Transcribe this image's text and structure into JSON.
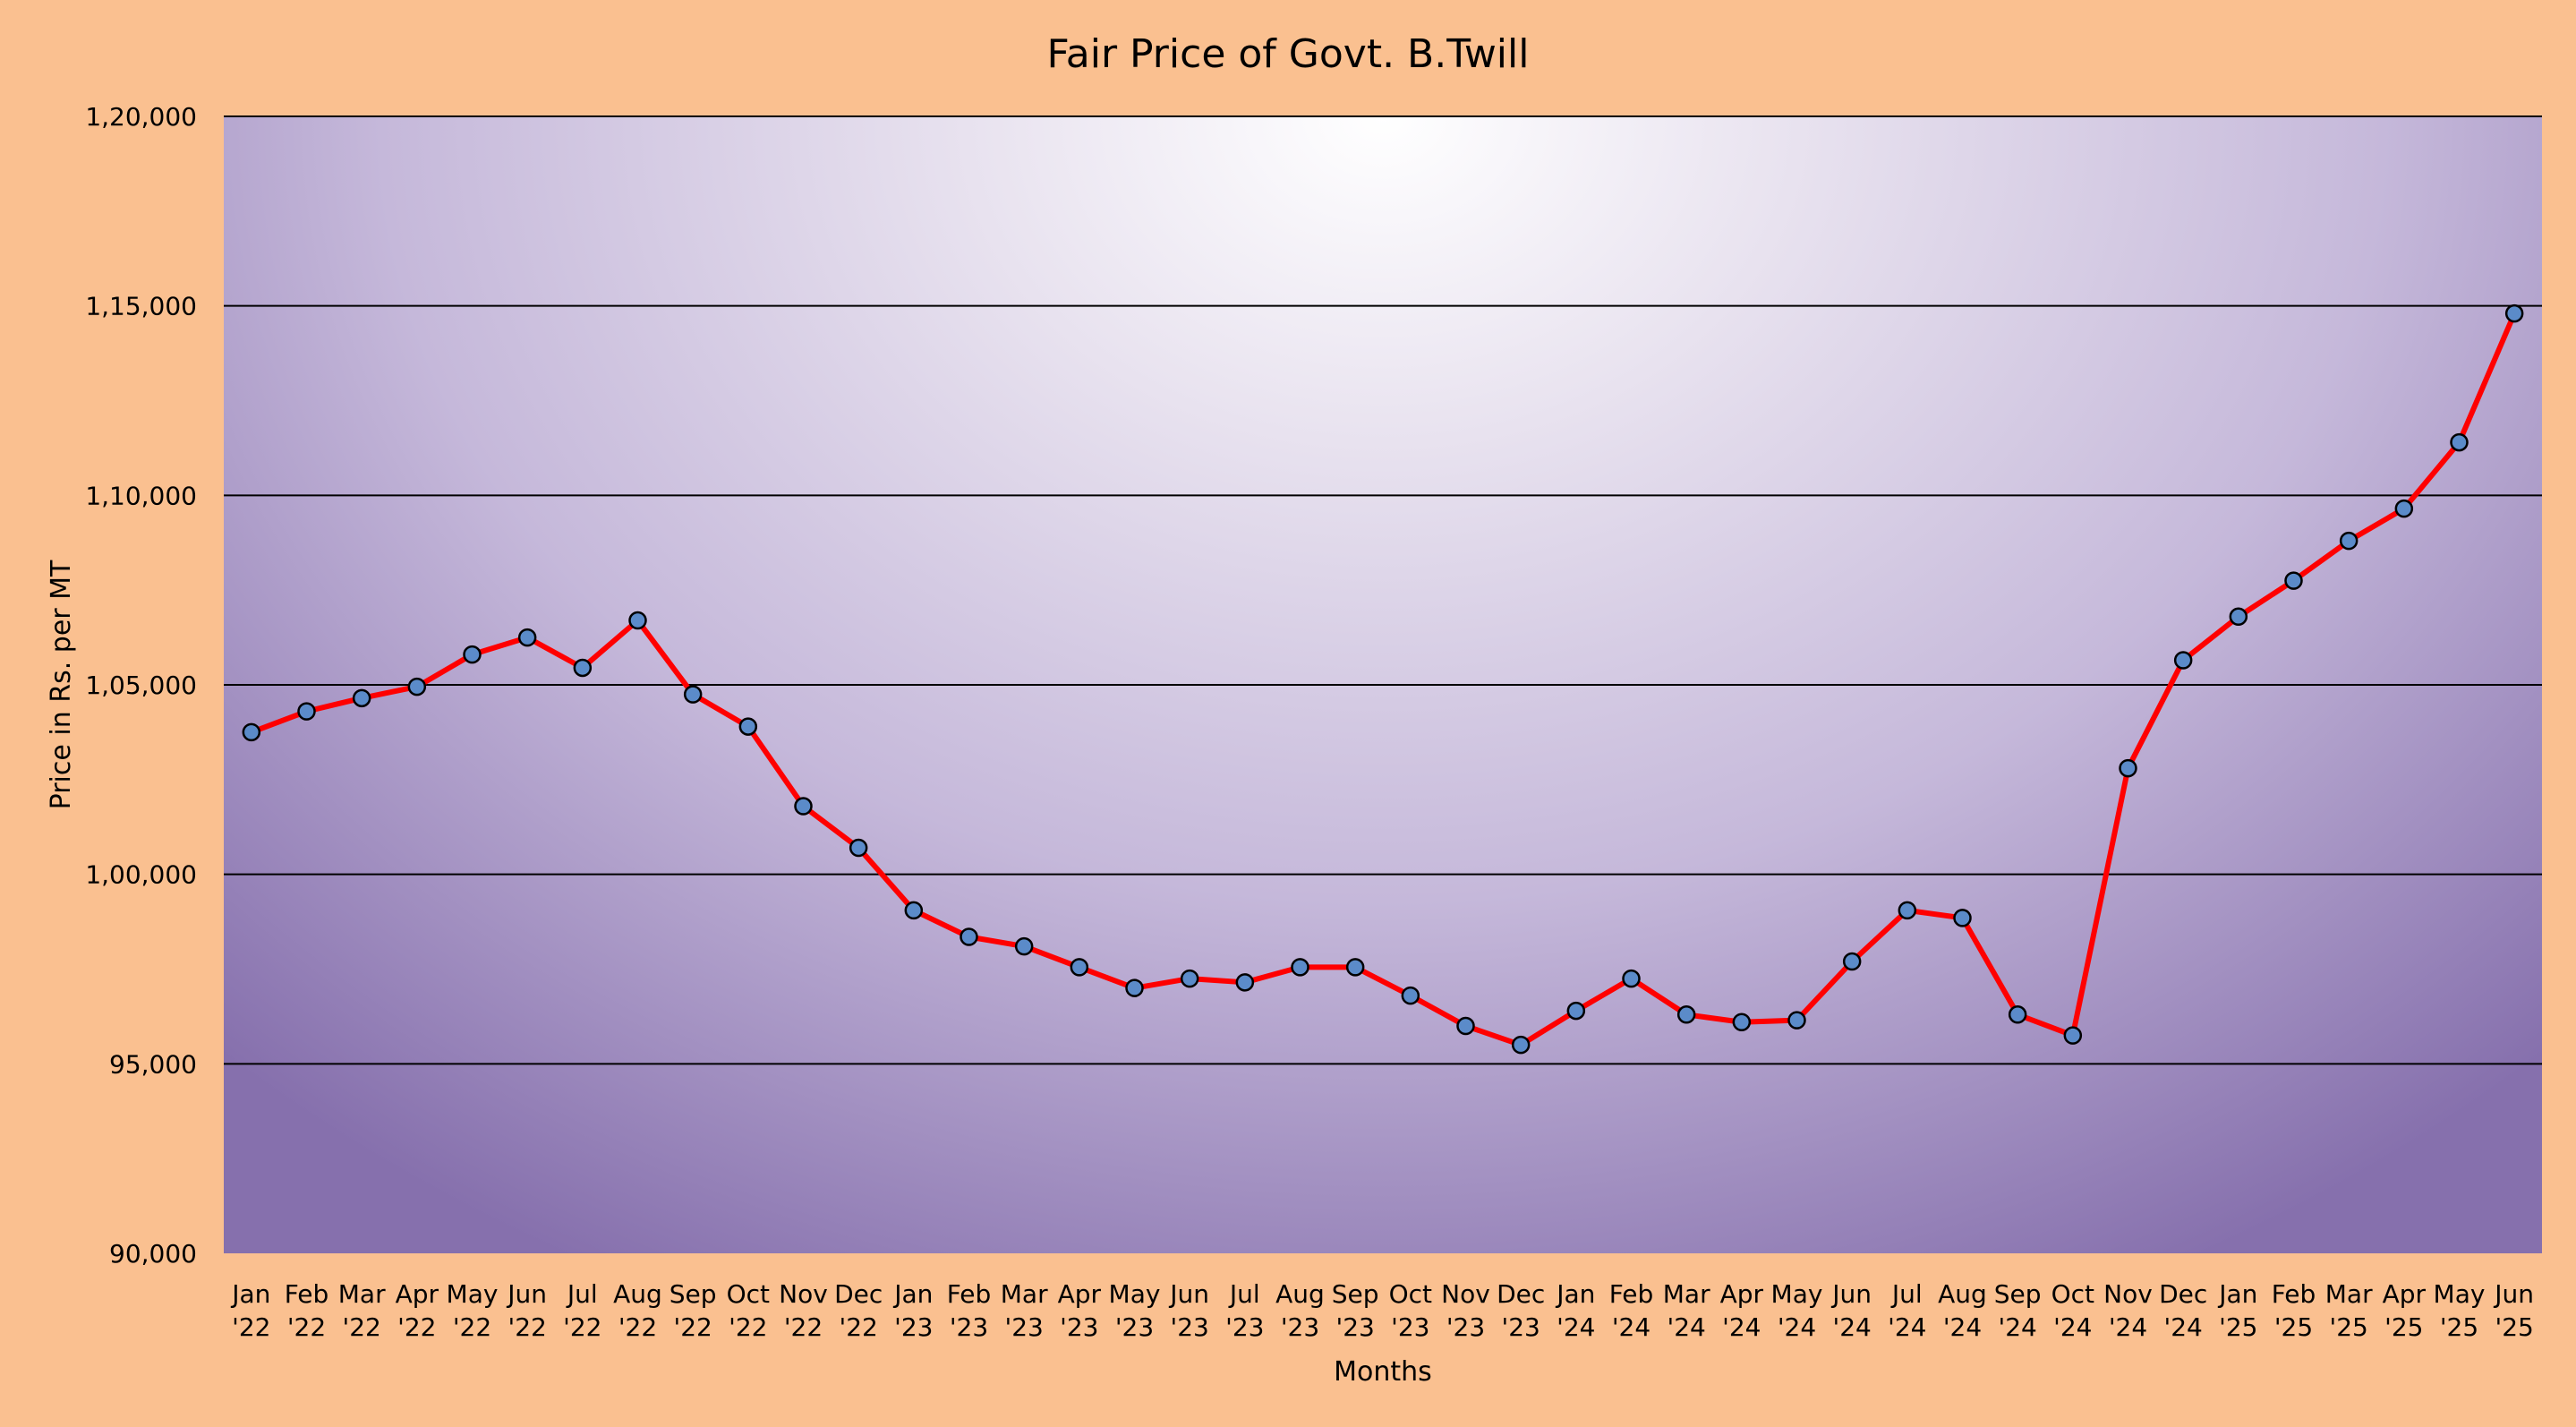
{
  "chart_data": {
    "type": "line",
    "title": "Fair Price of Govt. B.Twill",
    "xlabel": "Months",
    "ylabel": "Price in Rs. per MT",
    "ylim": [
      90000,
      120000
    ],
    "ytick_values": [
      90000,
      95000,
      100000,
      105000,
      110000,
      115000,
      120000
    ],
    "ytick_labels": [
      "90,000",
      "95,000",
      "1,00,000",
      "1,05,000",
      "1,10,000",
      "1,15,000",
      "1,20,000"
    ],
    "grid": "horizontal",
    "legend": "none",
    "categories": [
      [
        "Jan",
        "'22"
      ],
      [
        "Feb",
        "'22"
      ],
      [
        "Mar",
        "'22"
      ],
      [
        "Apr",
        "'22"
      ],
      [
        "May",
        "'22"
      ],
      [
        "Jun",
        "'22"
      ],
      [
        "Jul",
        "'22"
      ],
      [
        "Aug",
        "'22"
      ],
      [
        "Sep",
        "'22"
      ],
      [
        "Oct",
        "'22"
      ],
      [
        "Nov",
        "'22"
      ],
      [
        "Dec",
        "'22"
      ],
      [
        "Jan",
        "'23"
      ],
      [
        "Feb",
        "'23"
      ],
      [
        "Mar",
        "'23"
      ],
      [
        "Apr",
        "'23"
      ],
      [
        "May",
        "'23"
      ],
      [
        "Jun",
        "'23"
      ],
      [
        "Jul",
        "'23"
      ],
      [
        "Aug",
        "'23"
      ],
      [
        "Sep",
        "'23"
      ],
      [
        "Oct",
        "'23"
      ],
      [
        "Nov",
        "'23"
      ],
      [
        "Dec",
        "'23"
      ],
      [
        "Jan",
        "'24"
      ],
      [
        "Feb",
        "'24"
      ],
      [
        "Mar",
        "'24"
      ],
      [
        "Apr",
        "'24"
      ],
      [
        "May",
        "'24"
      ],
      [
        "Jun",
        "'24"
      ],
      [
        "Jul",
        "'24"
      ],
      [
        "Aug",
        "'24"
      ],
      [
        "Sep",
        "'24"
      ],
      [
        "Oct",
        "'24"
      ],
      [
        "Nov",
        "'24"
      ],
      [
        "Dec",
        "'24"
      ],
      [
        "Jan",
        "'25"
      ],
      [
        "Feb",
        "'25"
      ],
      [
        "Mar",
        "'25"
      ],
      [
        "Apr",
        "'25"
      ],
      [
        "May",
        "'25"
      ],
      [
        "Jun",
        "'25"
      ]
    ],
    "series": [
      {
        "values": [
          103750,
          104300,
          104650,
          104950,
          105800,
          106250,
          105450,
          106700,
          104750,
          103900,
          101800,
          100700,
          99050,
          98350,
          98100,
          97550,
          97000,
          97250,
          97150,
          97550,
          97550,
          96800,
          96000,
          95500,
          96400,
          97250,
          96300,
          96100,
          96150,
          97700,
          99050,
          98850,
          96300,
          95750,
          102800,
          105650,
          106800,
          107750,
          108800,
          109650,
          111400,
          114800
        ],
        "line_color": "#ff0000",
        "marker_color": "#5b8bc9"
      }
    ],
    "colors": {
      "page_background": "#fac090",
      "plot_edge": "#8670ad",
      "plot_center": "#ffffff"
    }
  }
}
